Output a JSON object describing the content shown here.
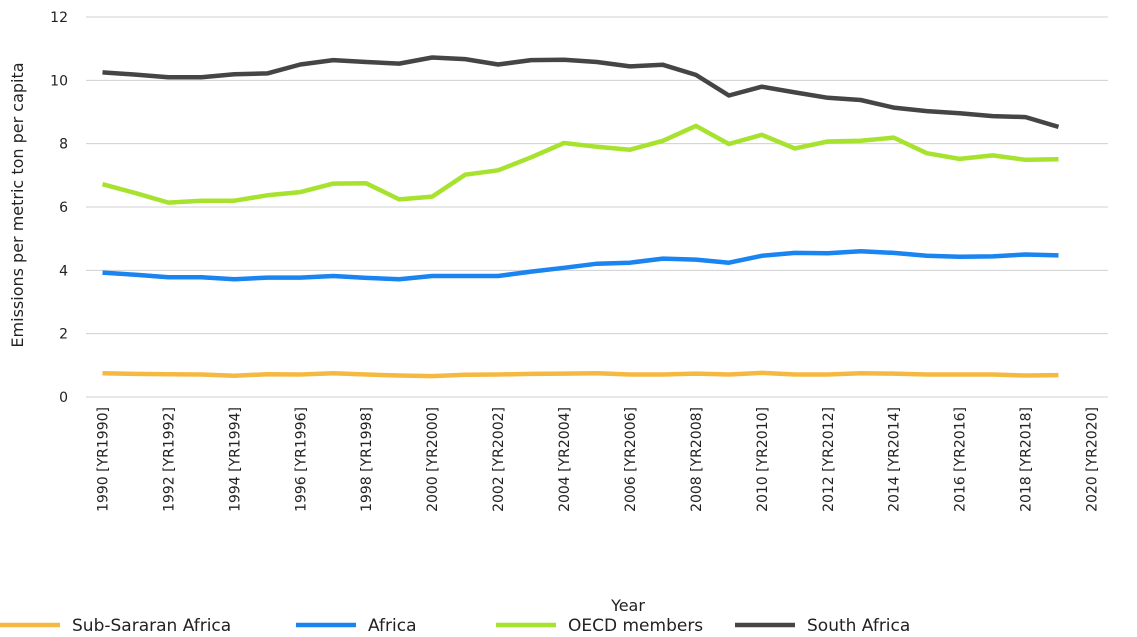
{
  "chart_data": {
    "type": "line",
    "title": "",
    "xlabel": "Year",
    "ylabel": "Emissions per metric ton per capita",
    "ylim": [
      0,
      12
    ],
    "yticks": [
      "0",
      "2",
      "4",
      "6",
      "8",
      "10",
      "12"
    ],
    "grid": "horizontal",
    "legend_position": "bottom",
    "x": [
      "1990 [YR1990]",
      "1991 [YR1991]",
      "1992 [YR1992]",
      "1993 [YR1993]",
      "1994 [YR1994]",
      "1995 [YR1995]",
      "1996 [YR1996]",
      "1997 [YR1997]",
      "1998 [YR1998]",
      "1999 [YR1999]",
      "2000 [YR2000]",
      "2001 [YR2001]",
      "2002 [YR2002]",
      "2003 [YR2003]",
      "2004 [YR2004]",
      "2005 [YR2005]",
      "2006 [YR2006]",
      "2007 [YR2007]",
      "2008 [YR2008]",
      "2009 [YR2009]",
      "2010 [YR2010]",
      "2011 [YR2011]",
      "2012 [YR2012]",
      "2013 [YR2013]",
      "2014 [YR2014]",
      "2015 [YR2015]",
      "2016 [YR2016]",
      "2017 [YR2017]",
      "2018 [YR2018]",
      "2019 [YR2019]",
      "2020 [YR2020]"
    ],
    "xtick_labels_shown": [
      "1990 [YR1990]",
      "1992 [YR1992]",
      "1994 [YR1994]",
      "1996 [YR1996]",
      "1998 [YR1998]",
      "2000 [YR2000]",
      "2002 [YR2002]",
      "2004 [YR2004]",
      "2006 [YR2006]",
      "2008 [YR2008]",
      "2010 [YR2010]",
      "2012 [YR2012]",
      "2014 [YR2014]",
      "2016 [YR2016]",
      "2018 [YR2018]",
      "2020 [YR2020]"
    ],
    "series": [
      {
        "name": "Sub-Sararan Africa",
        "color": "#F5B942",
        "values": [
          0.75,
          0.73,
          0.72,
          0.71,
          0.67,
          0.72,
          0.71,
          0.75,
          0.71,
          0.68,
          0.66,
          0.7,
          0.71,
          0.73,
          0.74,
          0.75,
          0.71,
          0.71,
          0.74,
          0.71,
          0.76,
          0.71,
          0.71,
          0.75,
          0.74,
          0.71,
          0.71,
          0.71,
          0.68,
          0.69,
          null
        ]
      },
      {
        "name": "Africa",
        "color": "#1A84F0",
        "values": [
          3.93,
          3.86,
          3.78,
          3.78,
          3.72,
          3.77,
          3.77,
          3.82,
          3.76,
          3.72,
          3.82,
          3.82,
          3.82,
          3.96,
          4.08,
          4.21,
          4.24,
          4.37,
          4.34,
          4.24,
          4.46,
          4.55,
          4.54,
          4.6,
          4.55,
          4.46,
          4.43,
          4.44,
          4.5,
          4.47,
          null
        ]
      },
      {
        "name": "OECD members",
        "color": "#A6E22E",
        "values": [
          6.72,
          6.44,
          6.14,
          6.2,
          6.2,
          6.37,
          6.47,
          6.74,
          6.75,
          6.24,
          6.33,
          7.02,
          7.16,
          7.57,
          8.02,
          7.9,
          7.81,
          8.09,
          8.56,
          7.99,
          8.28,
          7.85,
          8.07,
          8.09,
          8.19,
          7.7,
          7.52,
          7.63,
          7.49,
          7.51,
          null
        ]
      },
      {
        "name": "South Africa",
        "color": "#454545",
        "values": [
          10.25,
          10.18,
          10.1,
          10.1,
          10.19,
          10.22,
          10.5,
          10.64,
          10.58,
          10.53,
          10.72,
          10.67,
          10.5,
          10.64,
          10.65,
          10.58,
          10.44,
          10.49,
          10.17,
          9.52,
          9.8,
          9.62,
          9.45,
          9.38,
          9.14,
          9.03,
          8.96,
          8.87,
          8.84,
          8.53,
          null
        ]
      }
    ]
  }
}
